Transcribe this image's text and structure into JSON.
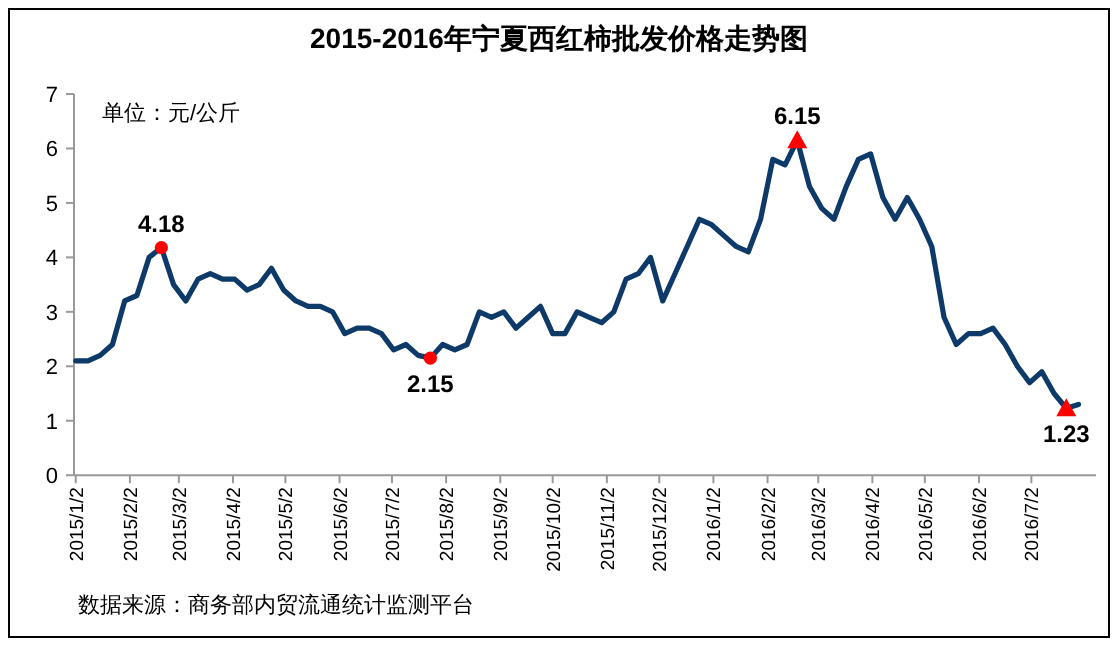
{
  "chart_data": {
    "type": "line",
    "title": "2015-2016年宁夏西红柿批发价格走势图",
    "ylabel": "单位：元/公斤",
    "annotations": [
      "数据来源：商务部内贸流通统计监测平台"
    ],
    "x": [
      "2015-01-02",
      "2015-01-09",
      "2015-01-16",
      "2015-01-23",
      "2015-01-30",
      "2015-02-06",
      "2015-02-13",
      "2015-02-20",
      "2015-02-27",
      "2015-03-06",
      "2015-03-13",
      "2015-03-20",
      "2015-03-27",
      "2015-04-03",
      "2015-04-10",
      "2015-04-17",
      "2015-04-24",
      "2015-05-01",
      "2015-05-08",
      "2015-05-15",
      "2015-05-22",
      "2015-05-29",
      "2015-06-05",
      "2015-06-12",
      "2015-06-19",
      "2015-06-26",
      "2015-07-03",
      "2015-07-10",
      "2015-07-17",
      "2015-07-24",
      "2015-07-31",
      "2015-08-07",
      "2015-08-14",
      "2015-08-21",
      "2015-08-28",
      "2015-09-04",
      "2015-09-11",
      "2015-09-18",
      "2015-09-25",
      "2015-10-02",
      "2015-10-09",
      "2015-10-16",
      "2015-10-23",
      "2015-10-30",
      "2015-11-06",
      "2015-11-13",
      "2015-11-20",
      "2015-11-27",
      "2015-12-04",
      "2015-12-11",
      "2015-12-18",
      "2015-12-25",
      "2016-01-01",
      "2016-01-08",
      "2016-01-15",
      "2016-01-22",
      "2016-01-29",
      "2016-02-05",
      "2016-02-12",
      "2016-02-19",
      "2016-02-26",
      "2016-03-04",
      "2016-03-11",
      "2016-03-18",
      "2016-03-25",
      "2016-04-01",
      "2016-04-08",
      "2016-04-15",
      "2016-04-22",
      "2016-04-29",
      "2016-05-06",
      "2016-05-13",
      "2016-05-20",
      "2016-05-27",
      "2016-06-03",
      "2016-06-10",
      "2016-06-17",
      "2016-06-24",
      "2016-07-01",
      "2016-07-08",
      "2016-07-15",
      "2016-07-22",
      "2016-07-29"
    ],
    "series": [
      {
        "color": "#0e3a6a",
        "values": [
          2.1,
          2.1,
          2.2,
          2.4,
          3.2,
          3.3,
          4.0,
          4.18,
          3.5,
          3.2,
          3.6,
          3.7,
          3.6,
          3.6,
          3.4,
          3.5,
          3.8,
          3.4,
          3.2,
          3.1,
          3.1,
          3.0,
          2.6,
          2.7,
          2.7,
          2.6,
          2.3,
          2.4,
          2.2,
          2.15,
          2.4,
          2.3,
          2.4,
          3.0,
          2.9,
          3.0,
          2.7,
          2.9,
          3.1,
          2.6,
          2.6,
          3.0,
          2.9,
          2.8,
          3.0,
          3.6,
          3.7,
          4.0,
          3.2,
          3.7,
          4.2,
          4.7,
          4.6,
          4.4,
          4.2,
          4.1,
          4.7,
          5.8,
          5.7,
          6.15,
          5.3,
          4.9,
          4.7,
          5.3,
          5.8,
          5.9,
          5.1,
          4.7,
          5.1,
          4.7,
          4.2,
          2.9,
          2.4,
          2.6,
          2.6,
          2.7,
          2.4,
          2.0,
          1.7,
          1.9,
          1.5,
          1.23,
          1.3
        ]
      },
      {
        "type": "scatter",
        "marker": "circle",
        "color": "#ff0000",
        "x": [
          "2015-02-20",
          "2015-07-24"
        ],
        "values": [
          4.18,
          2.15
        ],
        "value_labels": [
          "4.18",
          "2.15"
        ]
      },
      {
        "type": "scatter",
        "marker": "triangle",
        "color": "#ff0000",
        "x": [
          "2016-02-19",
          "2016-07-22"
        ],
        "values": [
          6.15,
          1.23
        ],
        "value_labels": [
          "6.15",
          "1.23"
        ]
      }
    ],
    "xlim": [
      "2015-01-01",
      "2016-08-08"
    ],
    "xticks": [
      {
        "value": "2015-01-02",
        "label": "2015/1/2"
      },
      {
        "value": "2015-02-02",
        "label": "2015/2/2"
      },
      {
        "value": "2015-03-02",
        "label": "2015/3/2"
      },
      {
        "value": "2015-04-02",
        "label": "2015/4/2"
      },
      {
        "value": "2015-05-02",
        "label": "2015/5/2"
      },
      {
        "value": "2015-06-02",
        "label": "2015/6/2"
      },
      {
        "value": "2015-07-02",
        "label": "2015/7/2"
      },
      {
        "value": "2015-08-02",
        "label": "2015/8/2"
      },
      {
        "value": "2015-09-02",
        "label": "2015/9/2"
      },
      {
        "value": "2015-10-02",
        "label": "2015/10/2"
      },
      {
        "value": "2015-11-02",
        "label": "2015/11/2"
      },
      {
        "value": "2015-12-02",
        "label": "2015/12/2"
      },
      {
        "value": "2016-01-02",
        "label": "2016/1/2"
      },
      {
        "value": "2016-02-02",
        "label": "2016/2/2"
      },
      {
        "value": "2016-03-02",
        "label": "2016/3/2"
      },
      {
        "value": "2016-04-02",
        "label": "2016/4/2"
      },
      {
        "value": "2016-05-02",
        "label": "2016/5/2"
      },
      {
        "value": "2016-06-02",
        "label": "2016/6/2"
      },
      {
        "value": "2016-07-02",
        "label": "2016/7/2"
      }
    ],
    "ylim": [
      0,
      7
    ],
    "yticks": [
      0,
      1,
      2,
      3,
      4,
      5,
      6,
      7
    ]
  }
}
